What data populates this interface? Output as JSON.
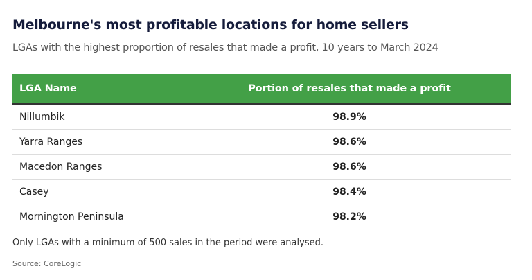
{
  "chart_data": {
    "type": "table",
    "title": "Melbourne's most profitable locations for home sellers",
    "subtitle": "LGAs with the highest proportion of resales that made a profit, 10 years to March 2024",
    "columns": [
      "LGA Name",
      "Portion of resales that made a profit"
    ],
    "rows": [
      {
        "name": "Nillumbik",
        "value": "98.9%"
      },
      {
        "name": "Yarra Ranges",
        "value": "98.6%"
      },
      {
        "name": "Macedon Ranges",
        "value": "98.6%"
      },
      {
        "name": "Casey",
        "value": "98.4%"
      },
      {
        "name": "Mornington Peninsula",
        "value": "98.2%"
      }
    ],
    "note": "Only LGAs with a minimum of 500 sales in the period were analysed.",
    "source": "Source: CoreLogic"
  },
  "colors": {
    "header": "#43a047",
    "title": "#151c3b"
  }
}
